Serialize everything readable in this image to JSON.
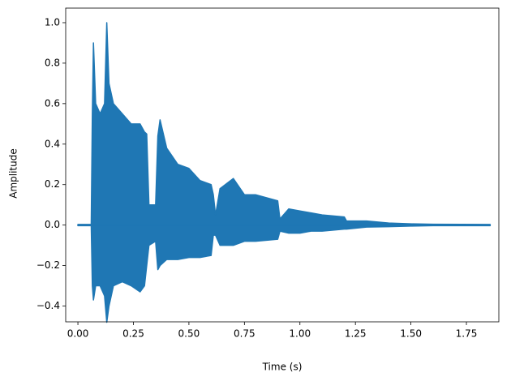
{
  "chart_data": {
    "type": "waveform",
    "x_label": "Time (s)",
    "y_label": "Amplitude",
    "color": "#1f77b4",
    "x": [
      0,
      0.06,
      0.065,
      0.07,
      0.08,
      0.1,
      0.12,
      0.13,
      0.14,
      0.16,
      0.2,
      0.24,
      0.28,
      0.3,
      0.31,
      0.32,
      0.35,
      0.36,
      0.37,
      0.4,
      0.45,
      0.5,
      0.55,
      0.6,
      0.61,
      0.62,
      0.64,
      0.7,
      0.75,
      0.8,
      0.9,
      0.91,
      0.95,
      1.0,
      1.05,
      1.1,
      1.2,
      1.21,
      1.3,
      1.4,
      1.5,
      1.6,
      1.857
    ],
    "max": [
      0.003,
      0.003,
      0.55,
      0.9,
      0.6,
      0.55,
      0.6,
      1.0,
      0.7,
      0.6,
      0.55,
      0.5,
      0.5,
      0.46,
      0.45,
      0.1,
      0.1,
      0.44,
      0.52,
      0.38,
      0.3,
      0.28,
      0.22,
      0.2,
      0.15,
      0.05,
      0.18,
      0.23,
      0.15,
      0.15,
      0.12,
      0.03,
      0.08,
      0.07,
      0.06,
      0.05,
      0.04,
      0.02,
      0.02,
      0.01,
      0.006,
      0.004,
      0.003
    ],
    "min": [
      -0.003,
      -0.003,
      -0.3,
      -0.37,
      -0.3,
      -0.3,
      -0.35,
      -0.48,
      -0.4,
      -0.3,
      -0.28,
      -0.3,
      -0.33,
      -0.3,
      -0.2,
      -0.1,
      -0.08,
      -0.22,
      -0.2,
      -0.17,
      -0.17,
      -0.16,
      -0.16,
      -0.15,
      -0.05,
      -0.05,
      -0.1,
      -0.1,
      -0.08,
      -0.08,
      -0.07,
      -0.03,
      -0.04,
      -0.04,
      -0.03,
      -0.03,
      -0.02,
      -0.02,
      -0.01,
      -0.008,
      -0.005,
      -0.003,
      -0.003
    ],
    "xlim": [
      -0.055,
      1.896
    ],
    "ylim": [
      -0.478,
      1.072
    ],
    "xticks": [
      {
        "value": 0,
        "label": "0.00"
      },
      {
        "value": 0.25,
        "label": "0.25"
      },
      {
        "value": 0.5,
        "label": "0.50"
      },
      {
        "value": 0.75,
        "label": "0.75"
      },
      {
        "value": 1,
        "label": "1.00"
      },
      {
        "value": 1.25,
        "label": "1.25"
      },
      {
        "value": 1.5,
        "label": "1.50"
      },
      {
        "value": 1.75,
        "label": "1.75"
      }
    ],
    "yticks": [
      {
        "value": -0.4,
        "label": "−0.4"
      },
      {
        "value": -0.2,
        "label": "−0.2"
      },
      {
        "value": 0,
        "label": "0.0"
      },
      {
        "value": 0.2,
        "label": "0.2"
      },
      {
        "value": 0.4,
        "label": "0.4"
      },
      {
        "value": 0.6,
        "label": "0.6"
      },
      {
        "value": 0.8,
        "label": "0.8"
      },
      {
        "value": 1,
        "label": "1.0"
      }
    ]
  }
}
